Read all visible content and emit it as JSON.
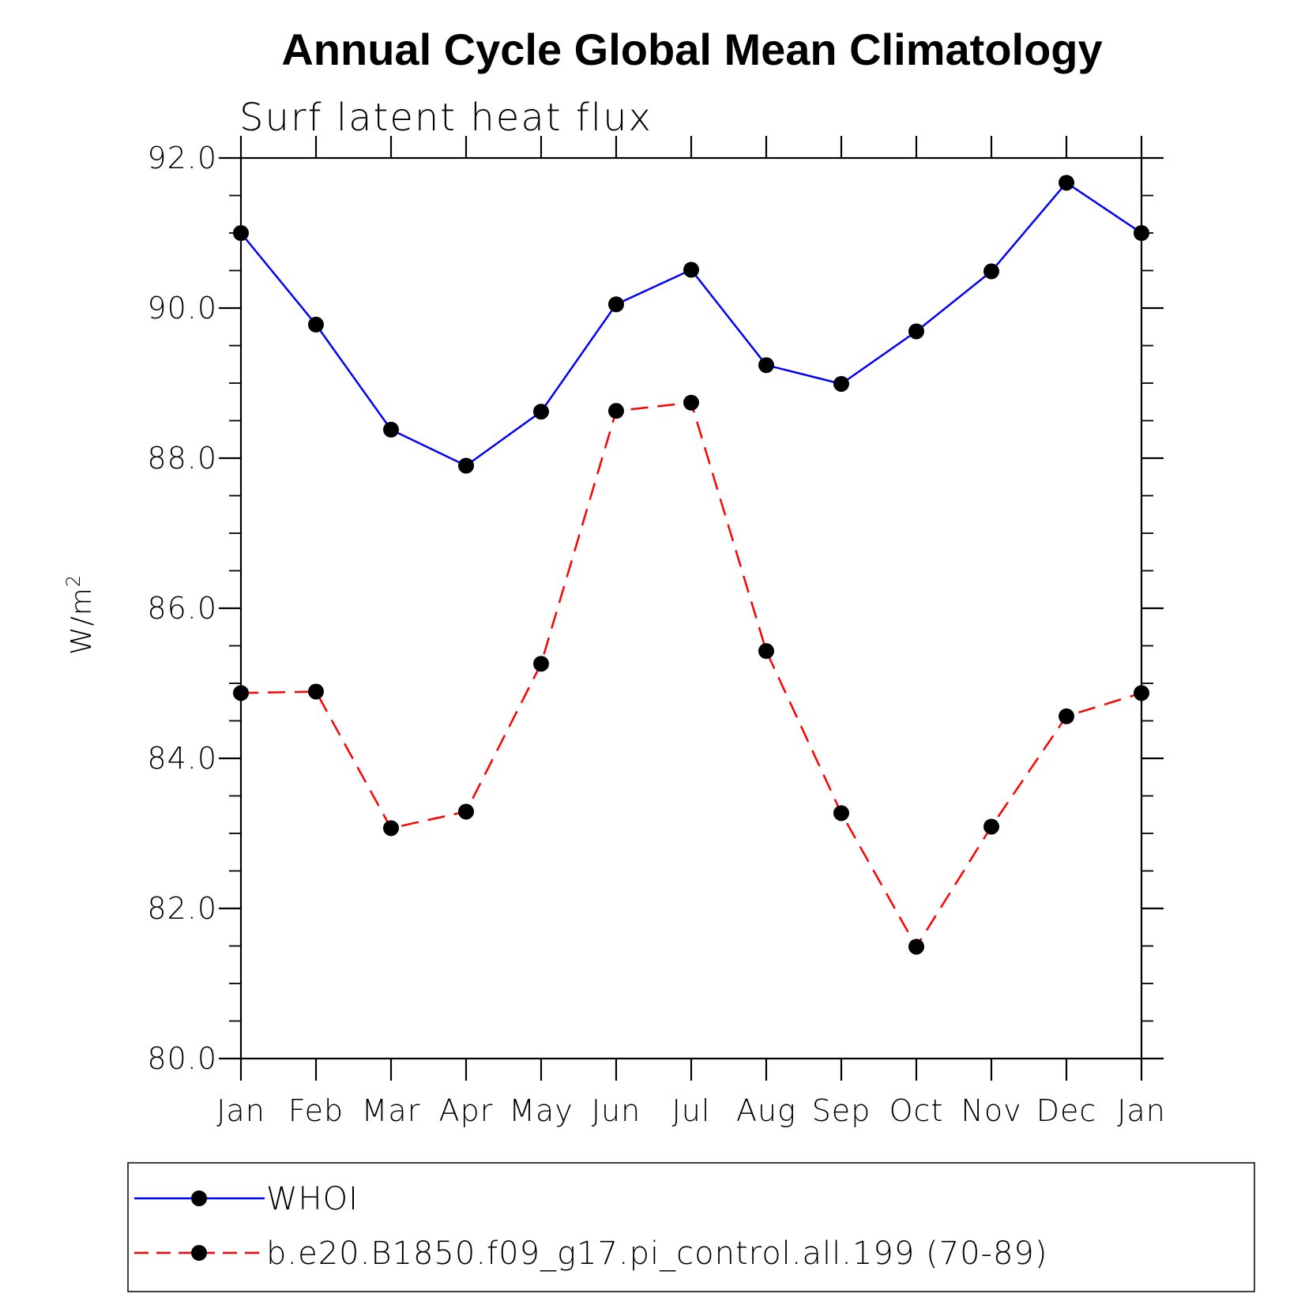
{
  "chart_data": {
    "type": "line",
    "title": "Annual Cycle Global Mean Climatology",
    "subtitle": "Surf latent heat flux",
    "ylabel": "W/m",
    "ylabel_superscript": "2",
    "xlabel": "",
    "categories": [
      "Jan",
      "Feb",
      "Mar",
      "Apr",
      "May",
      "Jun",
      "Jul",
      "Aug",
      "Sep",
      "Oct",
      "Nov",
      "Dec",
      "Jan"
    ],
    "ylim": [
      80.0,
      92.0
    ],
    "yticks": [
      "80.0",
      "82.0",
      "84.0",
      "86.0",
      "88.0",
      "90.0",
      "92.0"
    ],
    "grid": false,
    "legend_position": "bottom",
    "series": [
      {
        "name": "WHOI",
        "color": "#0000ff",
        "dash": "solid",
        "marker": "filled-circle",
        "values": [
          91.0,
          89.78,
          88.38,
          87.9,
          88.62,
          90.05,
          90.51,
          89.24,
          88.99,
          89.69,
          90.49,
          91.67,
          91.0
        ]
      },
      {
        "name": "b.e20.B1850.f09_g17.pi_control.all.199 (70-89)",
        "color": "#ff0000",
        "dash": "dashed",
        "marker": "filled-circle",
        "values": [
          84.87,
          84.89,
          83.07,
          83.29,
          85.26,
          88.63,
          88.74,
          85.43,
          83.27,
          81.49,
          83.09,
          84.56,
          84.87
        ]
      }
    ]
  }
}
